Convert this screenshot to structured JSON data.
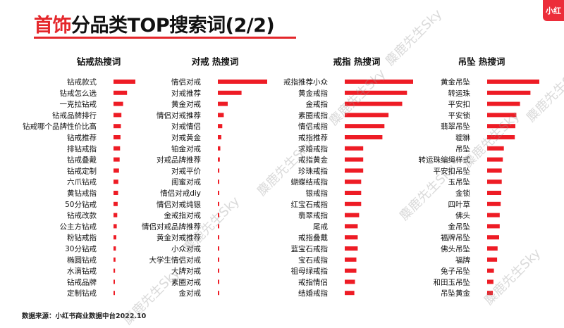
{
  "title": {
    "accent": "首饰",
    "main": "分品类TOP搜索词(2/2)"
  },
  "logo": "小红",
  "source": "数据来源：小红书商业数据中台2022.10",
  "watermark": "麋鹿先生Sky",
  "colors": {
    "accent": "#e4262a",
    "bar": "#ee1c25"
  },
  "chart_data": [
    {
      "type": "bar",
      "title": "钻戒热搜词",
      "categories": [
        "钻戒款式",
        "钻戒怎么选",
        "一克拉钻戒",
        "钻戒品牌排行",
        "钻戒哪个品牌性价比高",
        "钻戒推荐",
        "排钻戒指",
        "钻戒叠戴",
        "钻戒定制",
        "六爪钻戒",
        "黄钻戒指",
        "50分钻戒",
        "钻戒改款",
        "公主方钻戒",
        "粉钻戒指",
        "30分钻戒",
        "椭圆钻戒",
        "水滴钻戒",
        "钻戒品牌",
        "定制钻戒"
      ],
      "values": [
        100,
        62,
        44,
        36,
        34,
        32,
        30,
        28,
        25,
        22,
        21,
        19,
        17,
        15,
        13,
        11,
        9,
        7,
        5,
        4
      ]
    },
    {
      "type": "bar",
      "title": "对戒 热搜词",
      "categories": [
        "情侣对戒",
        "对戒推荐",
        "黄金对戒",
        "情侣对戒推荐",
        "对戒情侣",
        "对戒黄金",
        "铂金对戒",
        "对戒品牌推荐",
        "对戒平价",
        "闺蜜对戒",
        "情侣对戒diy",
        "情侣对戒纯银",
        "金戒指对戒",
        "情侣对戒品牌推荐",
        "黄金对戒推荐",
        "小众对戒",
        "大学生情侣对戒",
        "大牌对戒",
        "素圈对戒",
        "金对戒"
      ],
      "values": [
        100,
        48,
        20,
        12,
        9,
        7,
        5,
        4,
        3,
        2,
        2,
        2,
        2,
        2,
        2,
        2,
        1,
        1,
        1,
        1
      ]
    },
    {
      "type": "bar",
      "title": "戒指 热搜词",
      "categories": [
        "戒指推荐小众",
        "黄金戒指",
        "金戒指",
        "素圈戒指",
        "情侣戒指",
        "戒指推荐",
        "求婚戒指",
        "戒指黄金",
        "珍珠戒指",
        "蝴蝶结戒指",
        "银戒指",
        "红宝石戒指",
        "翡翠戒指",
        "尾戒",
        "戒指叠戴",
        "蓝宝石戒指",
        "宝石戒指",
        "祖母绿戒指",
        "戒指情侣",
        "结婚戒指"
      ],
      "values": [
        100,
        91,
        84,
        64,
        58,
        55,
        27,
        27,
        27,
        24,
        24,
        24,
        21,
        19,
        19,
        19,
        17,
        17,
        15,
        14
      ]
    },
    {
      "type": "bar",
      "title": "吊坠 热搜词",
      "categories": [
        "黄金吊坠",
        "转运珠",
        "平安扣",
        "平安锁",
        "翡翠吊坠",
        "貔貅",
        "吊坠",
        "转运珠编绳样式",
        "平安扣吊坠",
        "玉吊坠",
        "金锁",
        "四叶草",
        "佛头",
        "金吊坠",
        "福牌吊坠",
        "佛头吊坠",
        "福牌",
        "兔子吊坠",
        "和田玉吊坠",
        "吊坠黄金"
      ],
      "values": [
        100,
        83,
        63,
        56,
        54,
        53,
        32,
        30,
        28,
        28,
        27,
        26,
        24,
        24,
        23,
        20,
        19,
        13,
        12,
        11
      ]
    }
  ]
}
